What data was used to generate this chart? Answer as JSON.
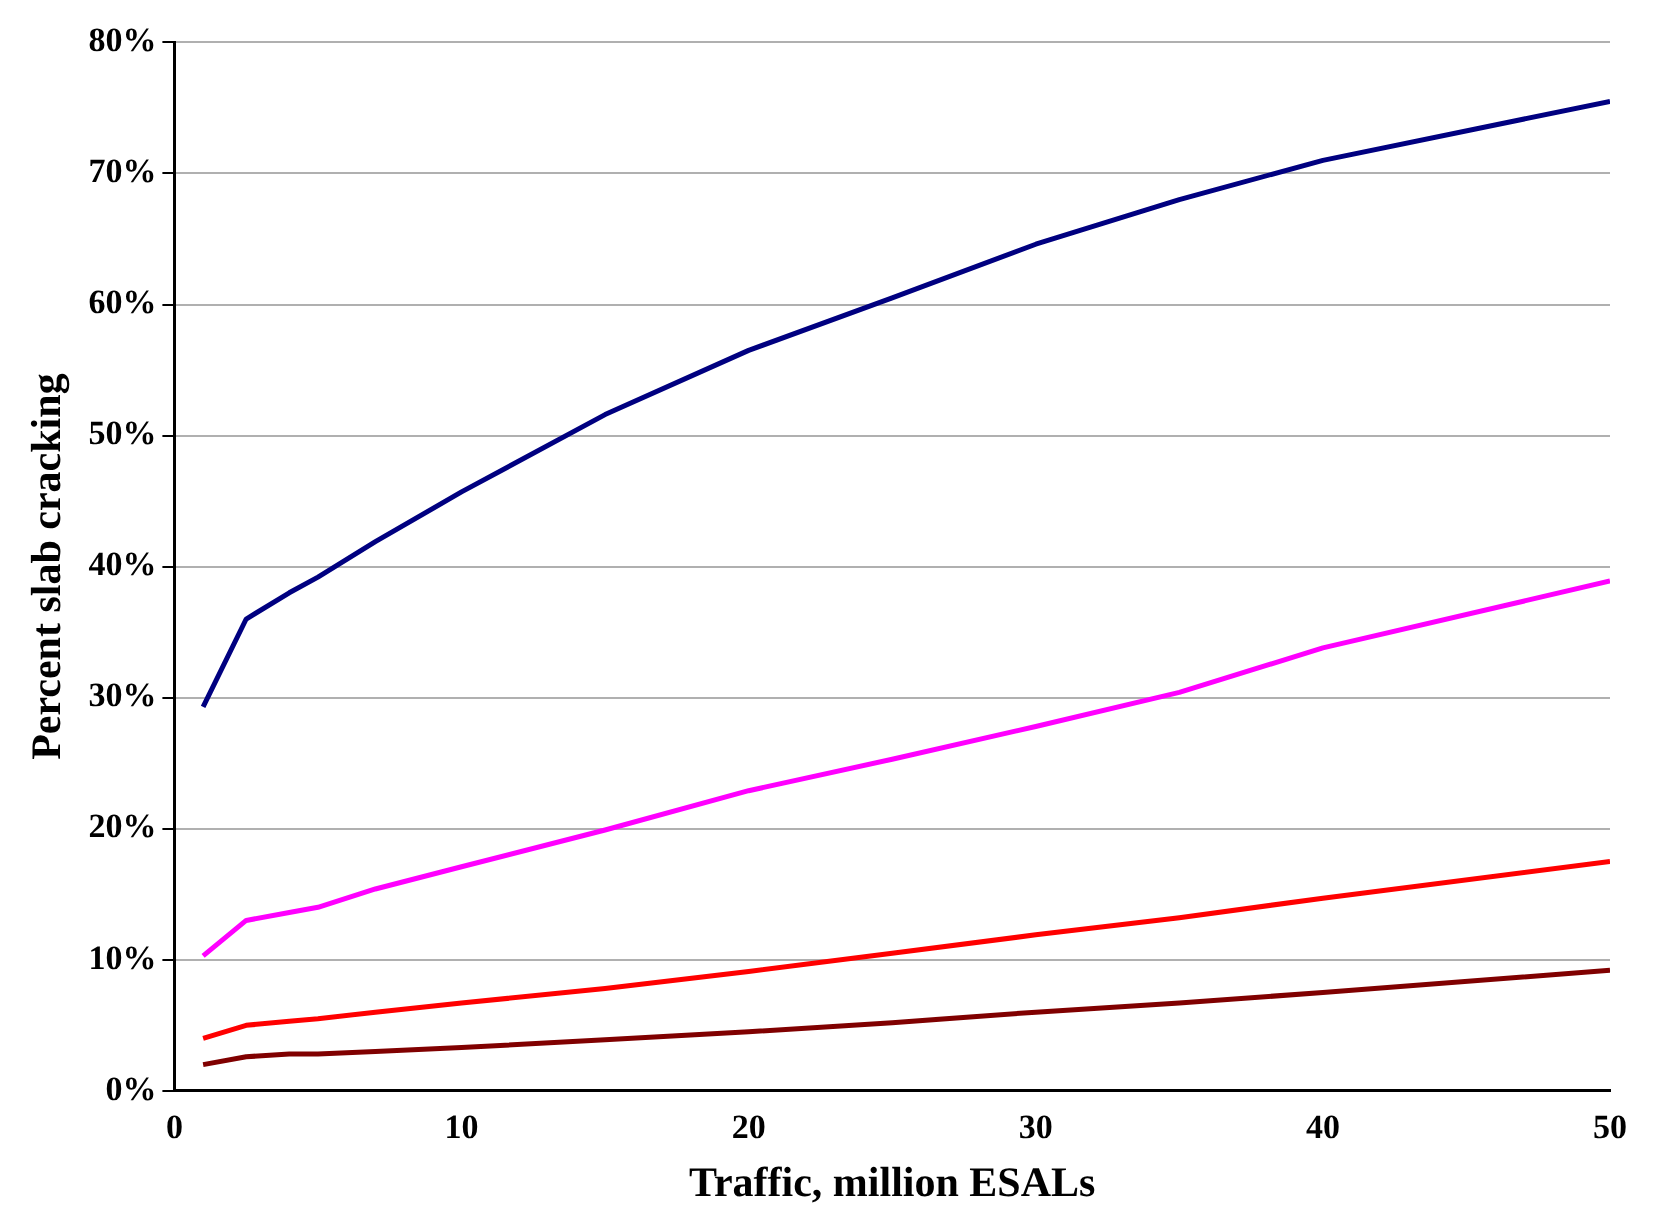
{
  "chart_data": {
    "type": "line",
    "xlabel": "Traffic, million ESALs",
    "ylabel": "Percent slab cracking",
    "x": [
      1,
      2.5,
      4,
      5,
      7,
      10,
      15,
      20,
      25,
      30,
      35,
      40,
      50
    ],
    "series": [
      {
        "color": "#000080",
        "values": [
          29.3,
          36.0,
          38.0,
          39.2,
          41.9,
          45.7,
          51.6,
          56.5,
          60.5,
          64.6,
          68.0,
          71.0,
          75.5
        ]
      },
      {
        "color": "#ff00ff",
        "values": [
          10.3,
          13.0,
          13.6,
          14.0,
          15.4,
          17.1,
          19.9,
          22.9,
          25.3,
          27.8,
          30.4,
          33.8,
          38.9
        ]
      },
      {
        "color": "#ff0000",
        "values": [
          4.0,
          5.0,
          5.3,
          5.5,
          6.0,
          6.7,
          7.8,
          9.1,
          10.5,
          11.9,
          13.2,
          14.7,
          17.5
        ]
      },
      {
        "color": "#800000",
        "values": [
          2.0,
          2.6,
          2.8,
          2.8,
          3.0,
          3.3,
          3.9,
          4.5,
          5.2,
          6.0,
          6.7,
          7.5,
          9.2
        ]
      }
    ],
    "xlim": [
      0,
      50
    ],
    "xticks": [
      0,
      10,
      20,
      30,
      40,
      50
    ],
    "ylim": [
      0,
      80
    ],
    "yticks": [
      {
        "value": 0,
        "label": "0%"
      },
      {
        "value": 10,
        "label": "10%"
      },
      {
        "value": 20,
        "label": "20%"
      },
      {
        "value": 30,
        "label": "30%"
      },
      {
        "value": 40,
        "label": "40%"
      },
      {
        "value": 50,
        "label": "50%"
      },
      {
        "value": 60,
        "label": "60%"
      },
      {
        "value": 70,
        "label": "70%"
      },
      {
        "value": 80,
        "label": "80%"
      }
    ],
    "grid": "y",
    "legend": false,
    "marker": "none",
    "line_style": "solid"
  }
}
